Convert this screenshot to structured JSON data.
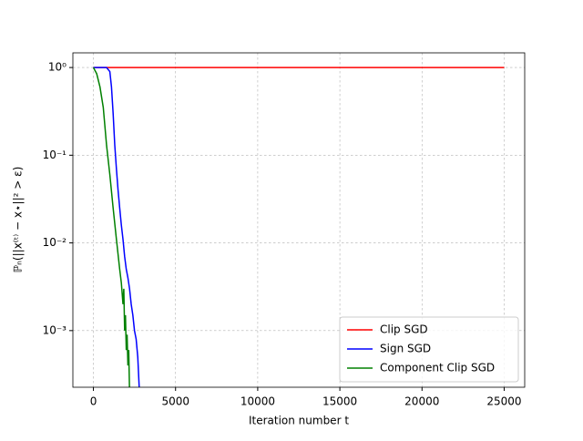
{
  "chart_data": {
    "type": "line",
    "xlabel": "Iteration number t",
    "ylabel": "ℙₙ(||x⁽ᵗ⁾ − x⋆||² > ε)",
    "series": [
      {
        "name": "Clip SGD",
        "color": "#ff0000",
        "x": [
          0,
          25000
        ],
        "values": [
          1,
          1
        ]
      },
      {
        "name": "Sign SGD",
        "color": "#0000ff",
        "x": [
          0,
          400,
          800,
          1000,
          1100,
          1200,
          1300,
          1400,
          1500,
          1600,
          1700,
          1800,
          1900,
          2000,
          2100,
          2200,
          2300,
          2400,
          2500,
          2600,
          2700,
          2800
        ],
        "values": [
          1,
          1,
          1,
          0.9,
          0.6,
          0.3,
          0.13,
          0.07,
          0.04,
          0.025,
          0.016,
          0.011,
          0.007,
          0.005,
          0.004,
          0.003,
          0.002,
          0.0015,
          0.001,
          0.0008,
          0.0005,
          0.0002
        ]
      },
      {
        "name": "Component Clip SGD",
        "color": "#008000",
        "x": [
          0,
          200,
          400,
          600,
          800,
          1000,
          1200,
          1400,
          1600,
          1700,
          1800,
          1850,
          1900,
          1950,
          2000,
          2050,
          2100,
          2150,
          2200
        ],
        "values": [
          1,
          0.85,
          0.6,
          0.35,
          0.13,
          0.06,
          0.025,
          0.011,
          0.005,
          0.0035,
          0.002,
          0.003,
          0.001,
          0.0015,
          0.0006,
          0.0009,
          0.0004,
          0.0006,
          0.0002
        ]
      }
    ],
    "xlim": [
      -1250,
      26250
    ],
    "xticks": [
      0,
      5000,
      10000,
      15000,
      20000,
      25000
    ],
    "ylim": [
      0.000226,
      1.47
    ],
    "log_y": true,
    "yticks": [
      {
        "value": 1,
        "label": "10⁰"
      },
      {
        "value": 0.1,
        "label": "10⁻¹"
      },
      {
        "value": 0.01,
        "label": "10⁻²"
      },
      {
        "value": 0.001,
        "label": "10⁻³"
      }
    ],
    "grid": true,
    "legend": "lower right"
  }
}
